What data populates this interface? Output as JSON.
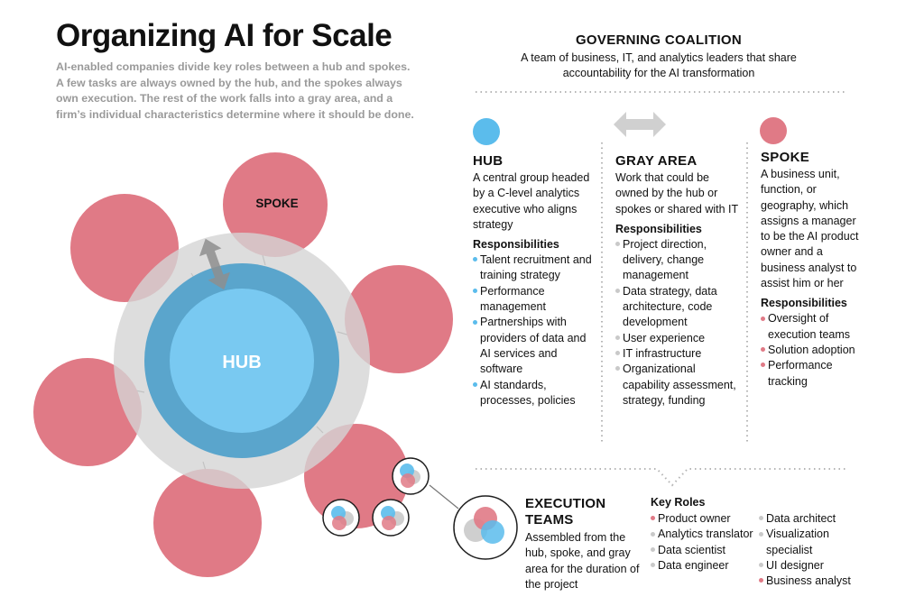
{
  "header": {
    "title": "Organizing AI for Scale",
    "intro": "AI-enabled companies divide key roles between a hub and spokes. A few tasks are always owned by the hub, and the spokes always own execution. The rest of the work falls into a gray area, and a firm’s individual characteristics determine where it should be done."
  },
  "diagram": {
    "hub_label": "HUB",
    "spoke_label": "SPOKE"
  },
  "colors": {
    "pink": "#e07a86",
    "blue": "#5bbcec",
    "dark_blue": "#5aa5cc",
    "gray": "#d5d5d5",
    "dark": "#1e1e1e"
  },
  "coalition": {
    "title": "GOVERNING COALITION",
    "desc": "A team of business, IT, and analytics leaders that share accountability for the AI transformation"
  },
  "hub": {
    "title": "HUB",
    "desc": "A central group headed by a C-level analytics executive who aligns strategy",
    "resp_label": "Responsibilities",
    "items": [
      "Talent recruitment and training strategy",
      "Performance management",
      "Partnerships with providers of data and AI services and software",
      "AI standards, processes, policies"
    ]
  },
  "gray_area": {
    "title": "GRAY AREA",
    "desc": "Work that could be owned by the hub or spokes or shared with IT",
    "resp_label": "Responsibilities",
    "items": [
      "Project direction, delivery, change management",
      "Data strategy, data architecture, code development",
      "User experience",
      "IT infrastructure",
      "Organizational capability assessment, strategy, funding"
    ]
  },
  "spoke": {
    "title": "SPOKE",
    "desc": "A business unit, function, or geography, which assigns a manager to be the AI product owner and a business analyst to assist him or her",
    "resp_label": "Responsibilities",
    "items": [
      "Oversight of execution teams",
      "Solution adoption",
      "Performance tracking"
    ]
  },
  "execution": {
    "title": "EXECUTION TEAMS",
    "desc": "Assembled from the hub, spoke, and gray area for the duration of the project",
    "roles_label": "Key Roles",
    "roles": [
      {
        "label": "Product owner",
        "color": "pink"
      },
      {
        "label": "Analytics translator",
        "color": "gray"
      },
      {
        "label": "Data scientist",
        "color": "gray"
      },
      {
        "label": "Data engineer",
        "color": "gray"
      },
      {
        "label": "Data architect",
        "color": "gray"
      },
      {
        "label": "Visualization specialist",
        "color": "gray"
      },
      {
        "label": "UI designer",
        "color": "gray"
      },
      {
        "label": "Business analyst",
        "color": "pink"
      }
    ]
  }
}
